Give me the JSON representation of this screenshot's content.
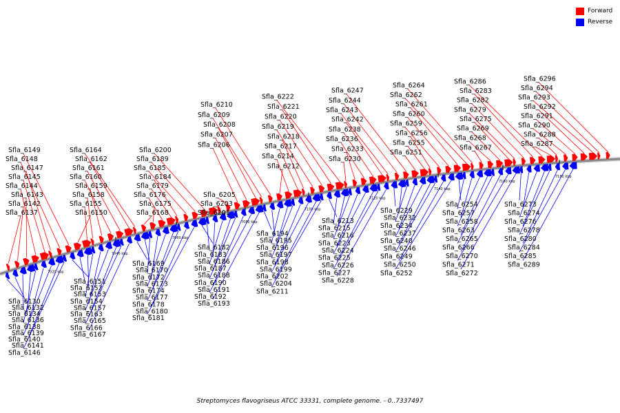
{
  "legend": {
    "forward_label": "Forward",
    "reverse_label": "Reverse",
    "forward_color": "#ff0000",
    "reverse_color": "#0000ff"
  },
  "caption": "Streptomyces flavogriseus ATCC 33331, complete genome. - 0..7337497",
  "colors": {
    "backbone": "#888888",
    "forward": "#ff0000",
    "reverse": "#0000ff",
    "leader": "#000000"
  },
  "scale_ticks": [
    "7020 kbp",
    "7040 kbp",
    "7060 kbp",
    "7080 kbp",
    "7100 kbp",
    "7120 kbp",
    "7140 kbp",
    "7160 kbp",
    "7180 kbp"
  ],
  "forward_genes": [
    "Sfla_6137",
    "Sfla_6142",
    "Sfla_6143",
    "Sfla_6144",
    "Sfla_6145",
    "Sfla_6147",
    "Sfla_6148",
    "Sfla_6149",
    "Sfla_6150",
    "Sfla_6155",
    "Sfla_6158",
    "Sfla_6159",
    "Sfla_6160",
    "Sfla_6161",
    "Sfla_6162",
    "Sfla_6164",
    "Sfla_6168",
    "Sfla_6175",
    "Sfla_6176",
    "Sfla_6179",
    "Sfla_6184",
    "Sfla_6185",
    "Sfla_6189",
    "Sfla_6200",
    "Sfla_6201",
    "Sfla_6203",
    "Sfla_6205",
    "Sfla_6206",
    "Sfla_6207",
    "Sfla_6208",
    "Sfla_6209",
    "Sfla_6210",
    "Sfla_6212",
    "Sfla_6214",
    "Sfla_6217",
    "Sfla_6218",
    "Sfla_6219",
    "Sfla_6220",
    "Sfla_6221",
    "Sfla_6222",
    "Sfla_6230",
    "Sfla_6233",
    "Sfla_6236",
    "Sfla_6238",
    "Sfla_6242",
    "Sfla_6243",
    "Sfla_6244",
    "Sfla_6247",
    "Sfla_6251",
    "Sfla_6255",
    "Sfla_6256",
    "Sfla_6259",
    "Sfla_6260",
    "Sfla_6261",
    "Sfla_6262",
    "Sfla_6264",
    "Sfla_6267",
    "Sfla_6268",
    "Sfla_6269",
    "Sfla_6275",
    "Sfla_6279",
    "Sfla_6282",
    "Sfla_6283",
    "Sfla_6286",
    "Sfla_6287",
    "Sfla_6288",
    "Sfla_6290",
    "Sfla_6291",
    "Sfla_6292",
    "Sfla_6293",
    "Sfla_6294",
    "Sfla_6296"
  ],
  "reverse_genes": [
    "Sfla_6130",
    "Sfla_6132",
    "Sfla_6134",
    "Sfla_6136",
    "Sfla_6138",
    "Sfla_6139",
    "Sfla_6140",
    "Sfla_6141",
    "Sfla_6146",
    "Sfla_6151",
    "Sfla_6152",
    "Sfla_6153",
    "Sfla_6154",
    "Sfla_6157",
    "Sfla_6163",
    "Sfla_6165",
    "Sfla_6166",
    "Sfla_6167",
    "Sfla_6169",
    "Sfla_6170",
    "Sfla_6172",
    "Sfla_6173",
    "Sfla_6174",
    "Sfla_6177",
    "Sfla_6178",
    "Sfla_6180",
    "Sfla_6181",
    "Sfla_6182",
    "Sfla_6183",
    "Sfla_6186",
    "Sfla_6187",
    "Sfla_6188",
    "Sfla_6190",
    "Sfla_6191",
    "Sfla_6192",
    "Sfla_6193",
    "Sfla_6194",
    "Sfla_6195",
    "Sfla_6196",
    "Sfla_6197",
    "Sfla_6198",
    "Sfla_6199",
    "Sfla_6202",
    "Sfla_6204",
    "Sfla_6211",
    "Sfla_6213",
    "Sfla_6215",
    "Sfla_6216",
    "Sfla_6223",
    "Sfla_6224",
    "Sfla_6225",
    "Sfla_6226",
    "Sfla_6227",
    "Sfla_6228",
    "Sfla_6229",
    "Sfla_6232",
    "Sfla_6234",
    "Sfla_6237",
    "Sfla_6240",
    "Sfla_6246",
    "Sfla_6249",
    "Sfla_6250",
    "Sfla_6252",
    "Sfla_6254",
    "Sfla_6257",
    "Sfla_6258",
    "Sfla_6263",
    "Sfla_6265",
    "Sfla_6266",
    "Sfla_6270",
    "Sfla_6271",
    "Sfla_6272",
    "Sfla_6273",
    "Sfla_6274",
    "Sfla_6276",
    "Sfla_6278",
    "Sfla_6280",
    "Sfla_6284",
    "Sfla_6285",
    "Sfla_6289"
  ]
}
